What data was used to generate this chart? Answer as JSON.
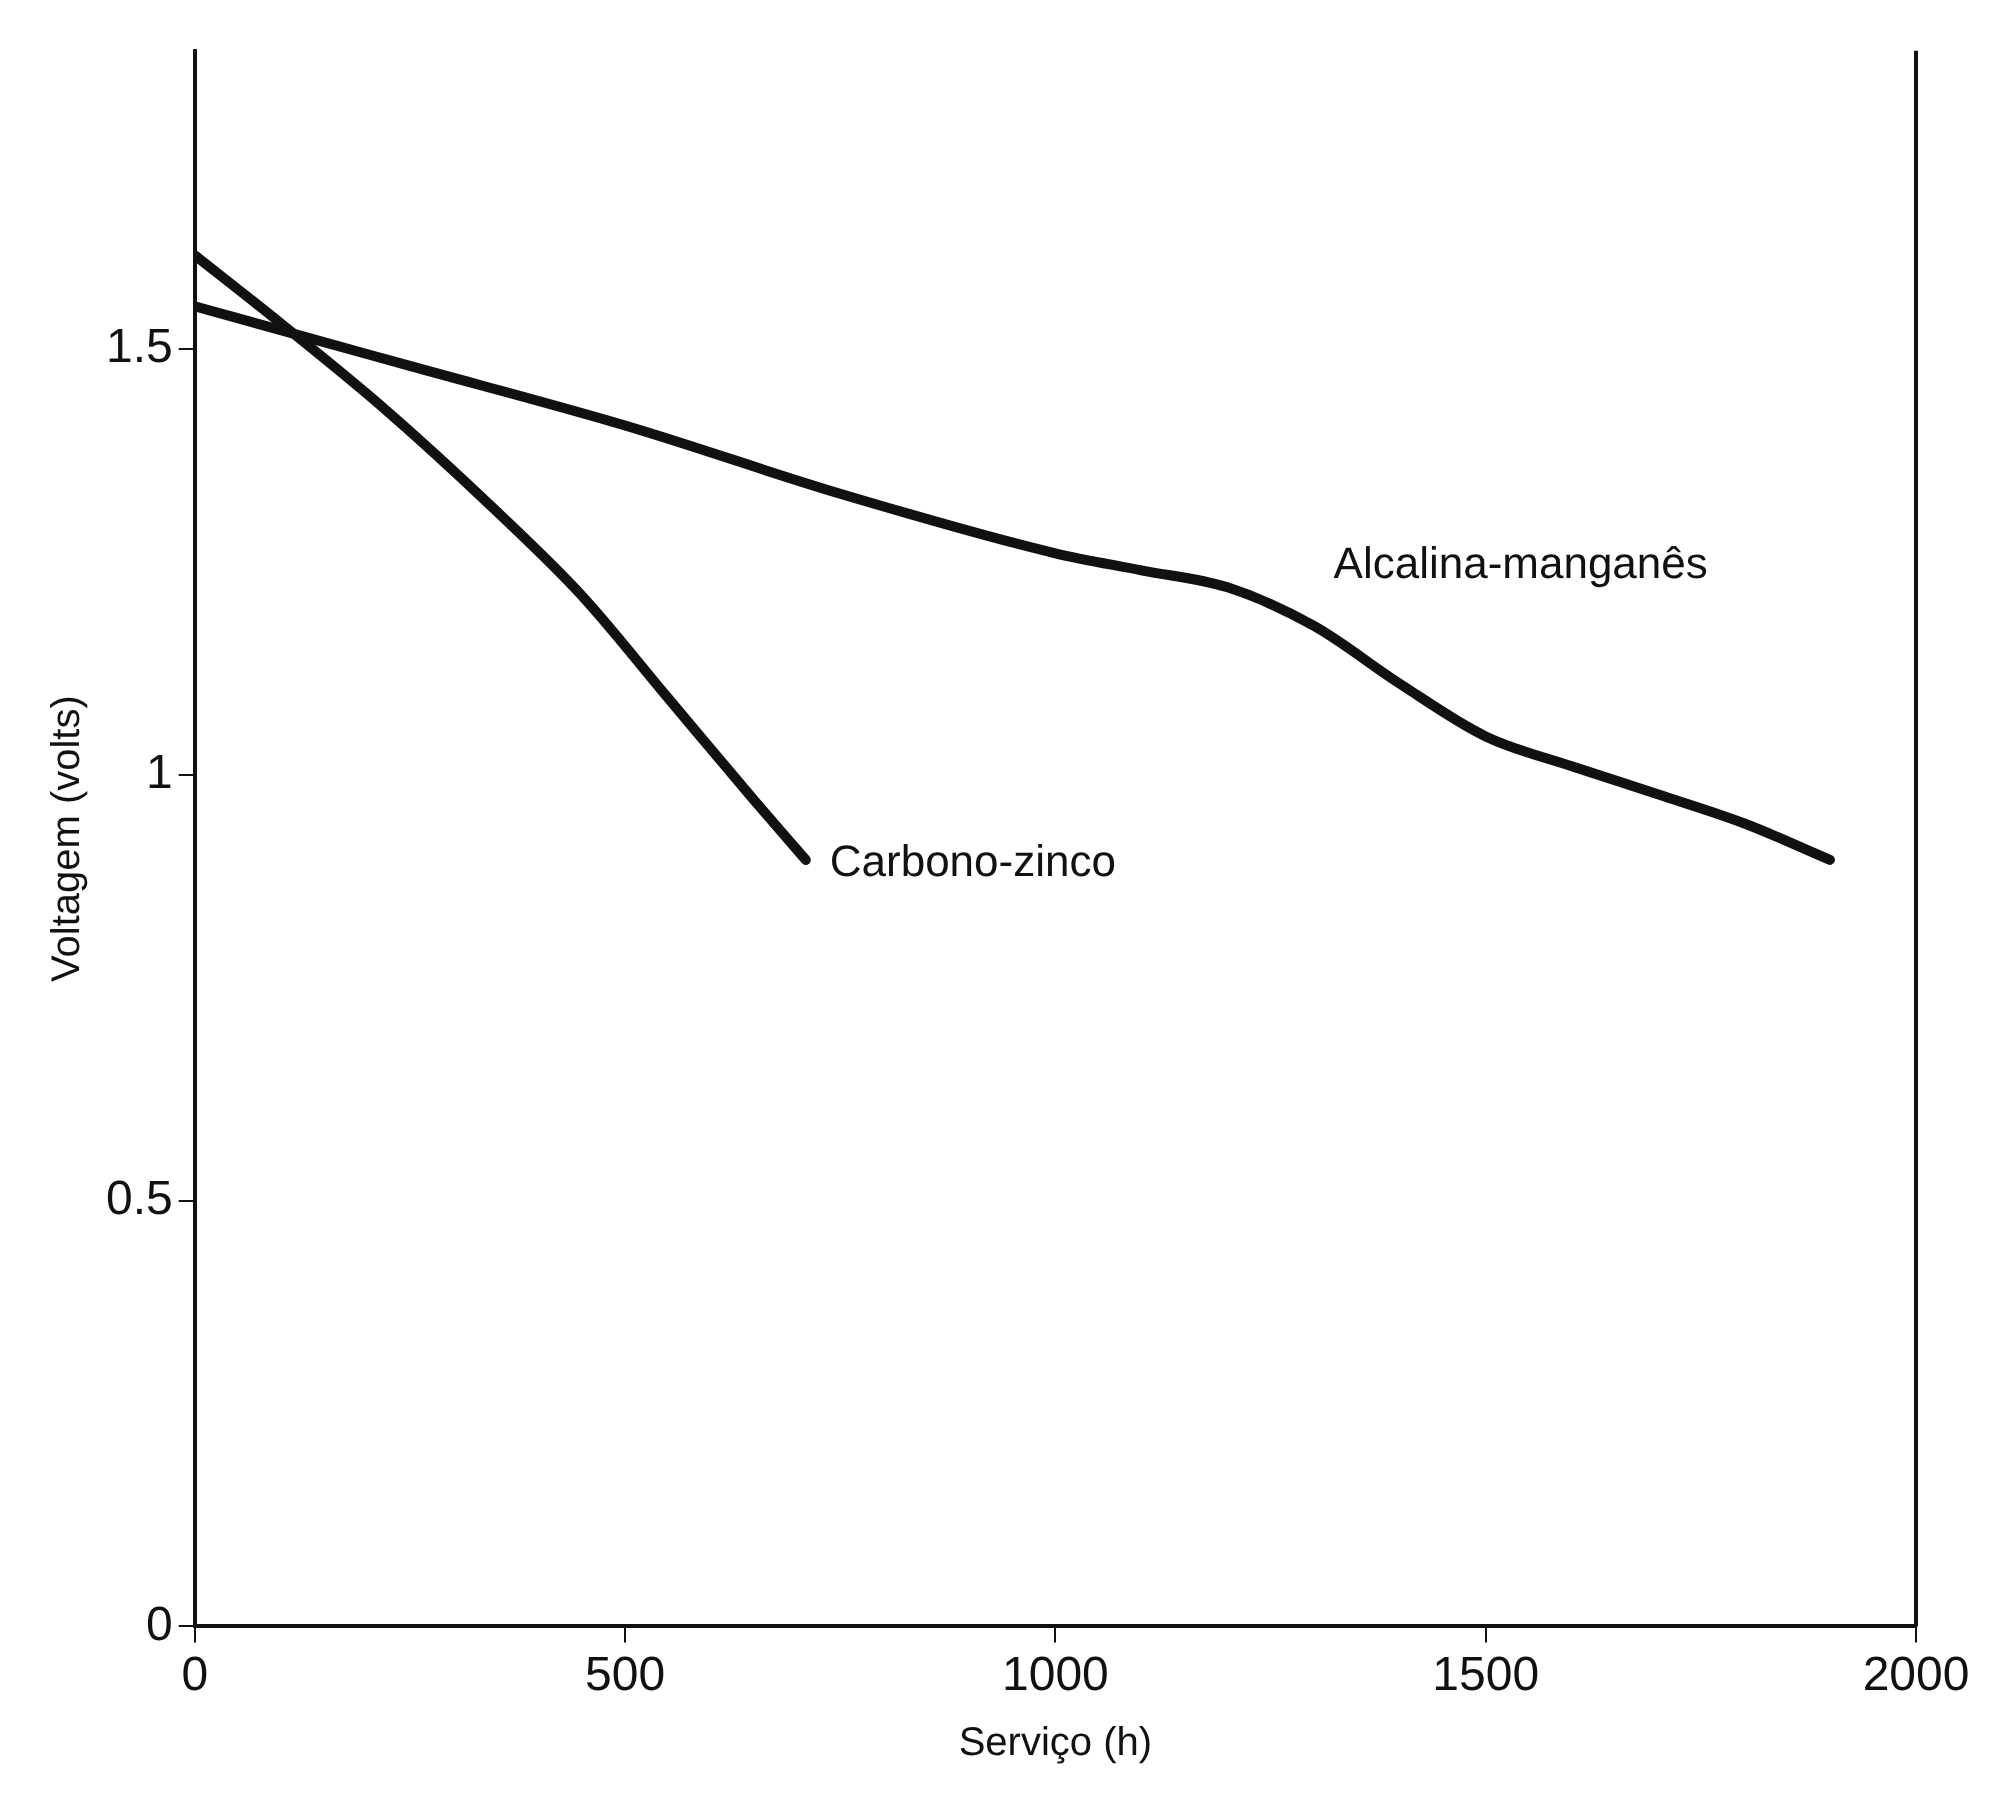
{
  "chart_data": {
    "type": "line",
    "xlabel": "Serviço (h)",
    "ylabel": "Voltagem (volts)",
    "xlim": [
      0,
      2000
    ],
    "ylim": [
      0,
      1.85
    ],
    "xticks": [
      0,
      500,
      1000,
      1500,
      2000
    ],
    "yticks": [
      0,
      0.5,
      1,
      1.5
    ],
    "grid": false,
    "legend": false,
    "marker": "none",
    "line_style": "solid",
    "series": [
      {
        "name": "Alcalina-manganês",
        "color": "#111111",
        "x": [
          0,
          250,
          500,
          750,
          1000,
          1100,
          1200,
          1300,
          1400,
          1500,
          1600,
          1700,
          1800,
          1900
        ],
        "values": [
          1.55,
          1.48,
          1.41,
          1.33,
          1.26,
          1.24,
          1.22,
          1.175,
          1.107,
          1.045,
          1.01,
          0.977,
          0.943,
          0.9
        ]
      },
      {
        "name": "Carbono-zinco",
        "color": "#111111",
        "x": [
          0,
          100,
          220,
          350,
          450,
          550,
          650,
          710
        ],
        "values": [
          1.61,
          1.53,
          1.43,
          1.31,
          1.21,
          1.09,
          0.97,
          0.9
        ]
      }
    ]
  }
}
